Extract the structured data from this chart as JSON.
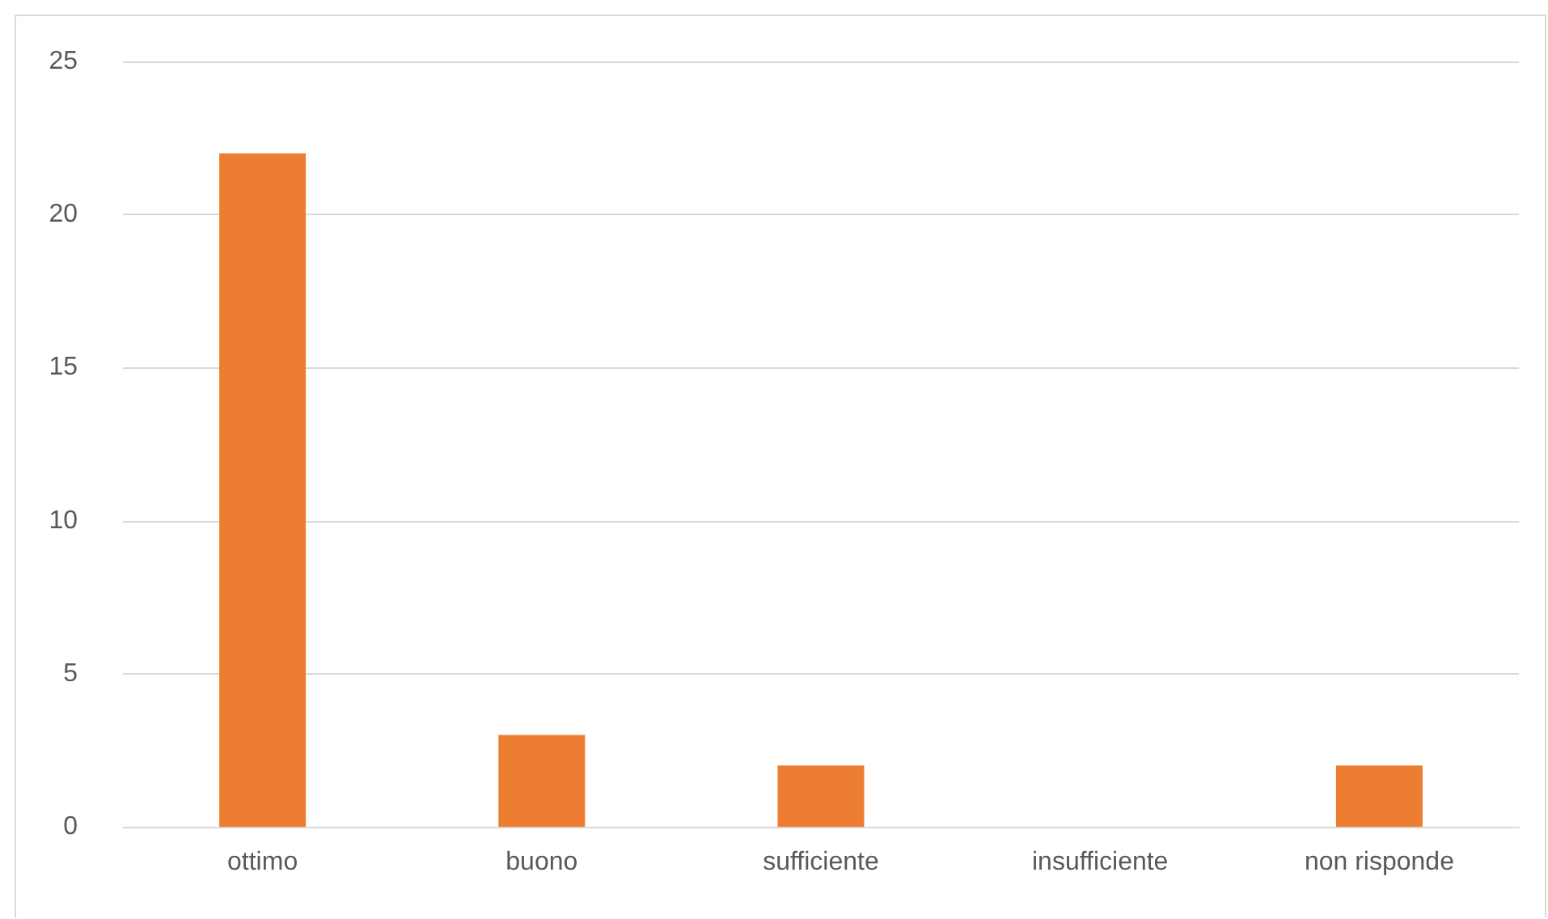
{
  "chart_data": {
    "type": "bar",
    "categories": [
      "ottimo",
      "buono",
      "sufficiente",
      "insufficiente",
      "non risponde"
    ],
    "values": [
      22,
      3,
      2,
      0,
      2
    ],
    "color": "#ed7d31",
    "ylim": [
      0,
      25
    ],
    "yticks": [
      0,
      5,
      10,
      15,
      20,
      25
    ],
    "grid": "y"
  }
}
